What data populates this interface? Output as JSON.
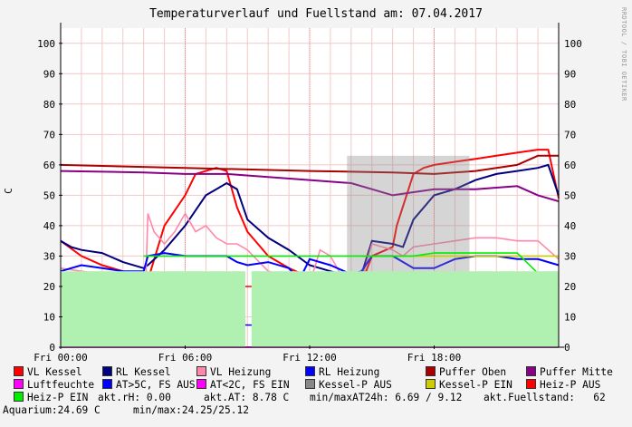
{
  "title": "Temperaturverlauf und Fuellstand am: 07.04.2017",
  "watermark": "RRDTOOL / TOBI OETIKER",
  "ylabel": "C",
  "chart_data": {
    "type": "line",
    "x_ticks": [
      "Fri 00:00",
      "Fri 06:00",
      "Fri 12:00",
      "Fri 18:00"
    ],
    "x_range_hours": [
      0,
      24
    ],
    "y_ticks": [
      0,
      10,
      20,
      30,
      40,
      50,
      60,
      70,
      80,
      90,
      100
    ],
    "ylim": [
      0,
      105
    ],
    "grid": true,
    "series": [
      {
        "name": "VL Kessel",
        "color": "#ff0000",
        "x": [
          0,
          1,
          2,
          3,
          4,
          4.2,
          5,
          6,
          6.5,
          7,
          7.5,
          8,
          8.5,
          9,
          10,
          11,
          12,
          13,
          14,
          14.5,
          15,
          16,
          16.2,
          17,
          17.5,
          18,
          19,
          20,
          21,
          22,
          23,
          23.5,
          24
        ],
        "values": [
          35,
          30,
          27,
          25,
          23,
          22,
          40,
          50,
          57,
          58,
          59,
          58,
          46,
          38,
          30,
          26,
          23,
          22,
          21,
          21,
          30,
          33,
          40,
          57,
          59,
          60,
          61,
          62,
          63,
          64,
          65,
          65,
          49
        ]
      },
      {
        "name": "RL Kessel",
        "color": "#000080",
        "x": [
          0,
          0.5,
          1,
          2,
          3,
          4,
          4.2,
          5,
          6,
          6.5,
          7,
          7.5,
          8,
          8.5,
          9,
          10,
          11,
          12,
          13,
          14,
          14.5,
          15,
          16,
          16.5,
          17,
          18,
          19,
          20,
          21,
          22,
          23,
          23.5,
          24
        ],
        "values": [
          35,
          33,
          32,
          31,
          28,
          26,
          27,
          32,
          40,
          45,
          50,
          52,
          54,
          52,
          42,
          36,
          32,
          27,
          25,
          23,
          24,
          35,
          34,
          33,
          42,
          50,
          52,
          55,
          57,
          58,
          59,
          60,
          50
        ]
      },
      {
        "name": "VL Heizung",
        "color": "#ff88aa",
        "x": [
          0,
          1,
          2,
          3,
          4,
          4.1,
          4.2,
          4.5,
          5,
          5.5,
          6,
          6.5,
          7,
          7.5,
          8,
          8.5,
          9,
          10,
          11,
          12,
          12.5,
          13,
          13.5,
          14,
          14.5,
          15,
          16,
          16.5,
          17,
          18,
          19,
          20,
          21,
          22,
          23,
          24
        ],
        "values": [
          26,
          25,
          24,
          22,
          21,
          21,
          44,
          38,
          34,
          38,
          44,
          38,
          40,
          36,
          34,
          34,
          32,
          25,
          23,
          21,
          32,
          30,
          24,
          21,
          22,
          34,
          32,
          30,
          33,
          34,
          35,
          36,
          36,
          35,
          35,
          29
        ]
      },
      {
        "name": "RL Heizung",
        "color": "#0000ff",
        "x": [
          0,
          1,
          2,
          3,
          4,
          4.2,
          5,
          6,
          7,
          8,
          8.5,
          9,
          10,
          11,
          11.5,
          12,
          13,
          14,
          14.5,
          15,
          16,
          17,
          18,
          19,
          20,
          21,
          22,
          23,
          24
        ],
        "values": [
          25,
          27,
          26,
          25,
          25,
          30,
          31,
          30,
          30,
          30,
          28,
          27,
          28,
          26,
          22,
          29,
          27,
          24,
          25,
          30,
          30,
          26,
          26,
          29,
          30,
          30,
          29,
          29,
          27
        ]
      },
      {
        "name": "Puffer Oben",
        "color": "#aa0000",
        "x": [
          0,
          6,
          12,
          16,
          18,
          20,
          22,
          23,
          24
        ],
        "values": [
          60,
          59,
          58,
          57.5,
          57,
          58,
          60,
          63,
          63
        ]
      },
      {
        "name": "Puffer Mitte",
        "color": "#880088",
        "x": [
          0,
          4,
          6,
          8,
          10,
          12,
          14,
          15,
          16,
          17,
          18,
          20,
          22,
          23,
          24
        ],
        "values": [
          58,
          57.5,
          57,
          57,
          56,
          55,
          54,
          52,
          50,
          51,
          52,
          52,
          53,
          50,
          48
        ]
      },
      {
        "name": "Luftfeuchte",
        "color": "#ff00ff",
        "x": [
          0,
          24
        ],
        "values": [
          0,
          0
        ]
      },
      {
        "name": "AT>5C, FS AUS",
        "color": "#0000ff",
        "x": [
          0,
          3,
          6,
          9,
          12,
          15,
          18,
          21,
          24
        ],
        "values": [
          8.8,
          8.5,
          7.5,
          7.3,
          7.0,
          7.5,
          7.8,
          8.0,
          8.8
        ]
      },
      {
        "name": "AT<2C, FS EIN",
        "color": "#ff00ff",
        "x": [
          0,
          24
        ],
        "values": [
          0,
          0
        ]
      },
      {
        "name": "Kessel-P AUS",
        "color": "#888888",
        "x": [
          13.8,
          19.7
        ],
        "values": [
          63,
          63
        ]
      },
      {
        "name": "Kessel-P EIN",
        "color": "#cccc00",
        "x": [
          14.5,
          24
        ],
        "values": [
          30,
          30
        ]
      },
      {
        "name": "Heiz-P AUS",
        "color": "#ff0000",
        "x": [
          0,
          4,
          5,
          6,
          8,
          10,
          12,
          14,
          15,
          16,
          16.5
        ],
        "values": [
          21,
          21,
          20,
          20,
          20,
          20,
          20,
          20,
          20,
          20,
          20
        ]
      },
      {
        "name": "Heiz-P EIN",
        "color": "#00ee00",
        "x": [
          4,
          4.2,
          5,
          6,
          7,
          8,
          8.5,
          14.5,
          15,
          16,
          17,
          18,
          20,
          22,
          23.5
        ],
        "values": [
          30,
          30,
          30,
          30,
          30,
          30,
          30,
          30,
          30,
          30,
          30,
          31,
          31,
          31,
          21
        ]
      },
      {
        "name": "Fuellstand",
        "color": "#b0f0b0",
        "x": [
          0,
          8.9,
          9.2,
          24
        ],
        "values": [
          25,
          25,
          25,
          25
        ]
      }
    ],
    "legend": [
      {
        "label": "VL Kessel",
        "color": "#ff0000"
      },
      {
        "label": "RL Kessel",
        "color": "#000080"
      },
      {
        "label": "VL Heizung",
        "color": "#ff88aa"
      },
      {
        "label": "RL Heizung",
        "color": "#0000ff"
      },
      {
        "label": "Puffer Oben",
        "color": "#aa0000"
      },
      {
        "label": "Puffer Mitte",
        "color": "#880088"
      },
      {
        "label": "Luftfeuchte",
        "color": "#ff00ff"
      },
      {
        "label": "AT>5C, FS AUS",
        "color": "#0000ff"
      },
      {
        "label": "AT<2C, FS EIN",
        "color": "#ff00ff"
      },
      {
        "label": "Kessel-P AUS",
        "color": "#888888"
      },
      {
        "label": "Kessel-P EIN",
        "color": "#cccc00"
      },
      {
        "label": "Heiz-P AUS",
        "color": "#ff0000"
      },
      {
        "label": "Heiz-P EIN",
        "color": "#00ee00"
      }
    ],
    "legend_placement": "bottom"
  },
  "stats": {
    "akt_rh": "akt.rH: 0.00",
    "akt_at": "akt.AT: 8.78 C",
    "min_max_at": "min/maxAT24h: 6.69 / 9.12",
    "akt_fuellstand": "akt.Fuellstand:   62",
    "aquarium": "Aquarium:24.69 C",
    "aquarium_minmax": "min/max:24.25/25.12"
  }
}
